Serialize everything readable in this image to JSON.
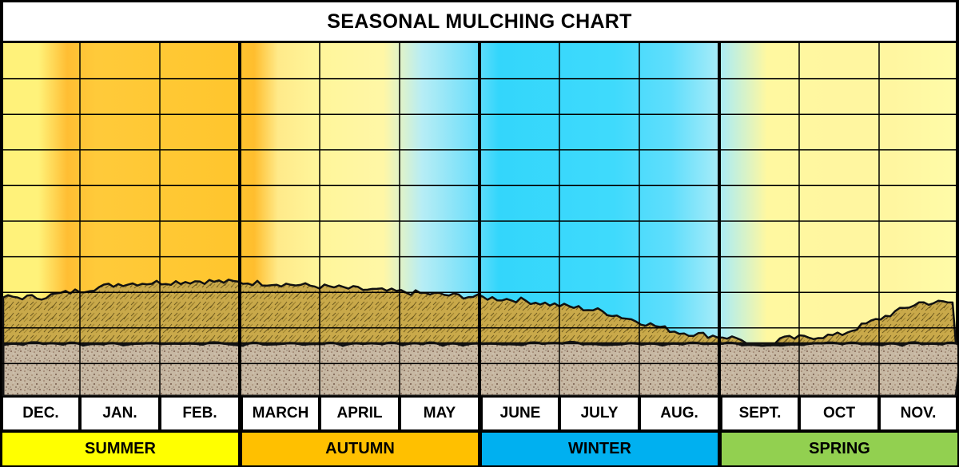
{
  "chart_data": {
    "type": "area",
    "title": "SEASONAL MULCHING CHART",
    "categories": [
      "DEC.",
      "JAN.",
      "FEB.",
      "MARCH",
      "APRIL",
      "MAY",
      "JUNE",
      "JULY",
      "AUG.",
      "SEPT.",
      "OCT",
      "NOV."
    ],
    "seasons": [
      {
        "name": "SUMMER",
        "months": [
          "DEC.",
          "JAN.",
          "FEB."
        ],
        "color": "#FFFF00"
      },
      {
        "name": "AUTUMN",
        "months": [
          "MARCH",
          "APRIL",
          "MAY"
        ],
        "color": "#FFC000"
      },
      {
        "name": "WINTER",
        "months": [
          "JUNE",
          "JULY",
          "AUG."
        ],
        "color": "#00B0F0"
      },
      {
        "name": "SPRING",
        "months": [
          "SEPT.",
          "OCT",
          "NOV."
        ],
        "color": "#92D050"
      }
    ],
    "series": [
      {
        "values": [
          1.6,
          2.1,
          2.2,
          2.1,
          1.9,
          1.7,
          1.5,
          1.1,
          0.3,
          0.0,
          0.2,
          1.4
        ]
      }
    ],
    "ylim": [
      0,
      10
    ],
    "grid": true
  },
  "colors": {
    "mulch": "#C9A94A",
    "soil": "#BEB09C",
    "summer_bg": "#FFC933",
    "autumn_bg": "#FFF596",
    "winter_bg": "#3CDCFC",
    "spring_bg": "#FFF7A0"
  }
}
